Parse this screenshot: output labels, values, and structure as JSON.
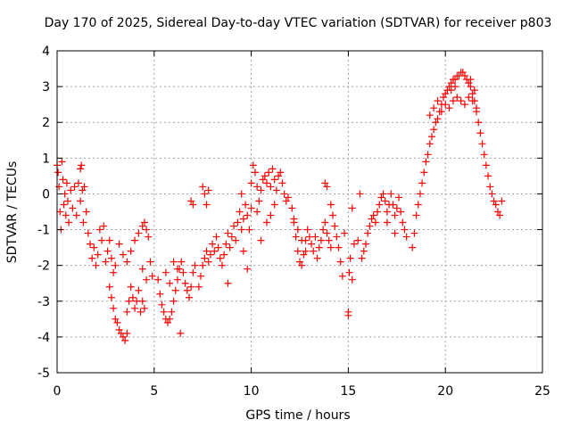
{
  "chart_data": {
    "type": "scatter",
    "title": "Day 170 of 2025, Sidereal Day-to-day VTEC variation (SDTVAR) for receiver p803",
    "xlabel": "GPS time / hours",
    "ylabel": "SDTVAR / TECUs",
    "xlim": [
      0,
      25
    ],
    "ylim": [
      -5,
      4
    ],
    "xticks": [
      0,
      5,
      10,
      15,
      20,
      25
    ],
    "xtick_labels": [
      "0",
      "5",
      "10",
      "15",
      "20",
      "25"
    ],
    "yticks": [
      -5,
      -4,
      -3,
      -2,
      -1,
      0,
      1,
      2,
      3,
      4
    ],
    "ytick_labels": [
      "-5",
      "-4",
      "-3",
      "-2",
      "-1",
      "0",
      "1",
      "2",
      "3",
      "4"
    ],
    "grid": true,
    "marker": "+",
    "color": "#ff0000",
    "series": [
      {
        "name": "SDTVAR",
        "points": [
          [
            0.0,
            0.8
          ],
          [
            0.05,
            0.6
          ],
          [
            0.1,
            0.2
          ],
          [
            0.15,
            -0.5
          ],
          [
            0.2,
            -1.0
          ],
          [
            0.25,
            0.9
          ],
          [
            0.3,
            0.4
          ],
          [
            0.35,
            -0.3
          ],
          [
            0.4,
            0.0
          ],
          [
            0.45,
            -0.6
          ],
          [
            0.5,
            0.3
          ],
          [
            0.55,
            -0.2
          ],
          [
            0.6,
            -0.8
          ],
          [
            0.7,
            0.1
          ],
          [
            0.8,
            -0.4
          ],
          [
            0.9,
            0.2
          ],
          [
            1.0,
            -0.6
          ],
          [
            1.1,
            0.3
          ],
          [
            1.2,
            -0.2
          ],
          [
            1.3,
            0.1
          ],
          [
            1.35,
            -0.8
          ],
          [
            1.4,
            0.2
          ],
          [
            1.5,
            -0.5
          ],
          [
            1.6,
            -1.1
          ],
          [
            1.7,
            -1.4
          ],
          [
            1.8,
            -1.8
          ],
          [
            1.9,
            -1.5
          ],
          [
            2.0,
            -2.0
          ],
          [
            2.1,
            -1.7
          ],
          [
            2.2,
            -1.0
          ],
          [
            2.3,
            -1.3
          ],
          [
            2.4,
            -0.9
          ],
          [
            2.5,
            -1.9
          ],
          [
            2.6,
            -1.6
          ],
          [
            2.7,
            -1.3
          ],
          [
            2.8,
            -1.8
          ],
          [
            2.9,
            -2.2
          ],
          [
            3.0,
            -2.0
          ],
          [
            1.2,
            0.7
          ],
          [
            1.25,
            0.8
          ],
          [
            2.7,
            -2.6
          ],
          [
            2.8,
            -2.9
          ],
          [
            2.9,
            -3.2
          ],
          [
            3.0,
            -3.5
          ],
          [
            3.1,
            -3.6
          ],
          [
            3.2,
            -3.8
          ],
          [
            3.3,
            -3.9
          ],
          [
            3.4,
            -4.0
          ],
          [
            3.5,
            -4.1
          ],
          [
            3.6,
            -3.9
          ],
          [
            3.6,
            -3.3
          ],
          [
            3.7,
            -3.0
          ],
          [
            3.8,
            -2.6
          ],
          [
            3.9,
            -2.9
          ],
          [
            4.0,
            -3.2
          ],
          [
            4.1,
            -3.0
          ],
          [
            4.2,
            -2.7
          ],
          [
            4.3,
            -3.3
          ],
          [
            4.4,
            -3.0
          ],
          [
            4.5,
            -3.2
          ],
          [
            3.2,
            -1.4
          ],
          [
            3.4,
            -1.7
          ],
          [
            3.6,
            -1.9
          ],
          [
            3.8,
            -1.6
          ],
          [
            4.0,
            -1.3
          ],
          [
            4.2,
            -1.1
          ],
          [
            4.4,
            -0.9
          ],
          [
            4.5,
            -0.8
          ],
          [
            4.6,
            -1.0
          ],
          [
            4.7,
            -1.2
          ],
          [
            4.4,
            -2.1
          ],
          [
            4.6,
            -2.4
          ],
          [
            4.8,
            -1.9
          ],
          [
            4.9,
            -2.3
          ],
          [
            5.2,
            -2.4
          ],
          [
            5.3,
            -2.8
          ],
          [
            5.4,
            -3.1
          ],
          [
            5.5,
            -3.3
          ],
          [
            5.6,
            -3.5
          ],
          [
            5.7,
            -3.6
          ],
          [
            5.8,
            -3.5
          ],
          [
            5.9,
            -3.3
          ],
          [
            6.0,
            -3.0
          ],
          [
            6.1,
            -2.7
          ],
          [
            6.2,
            -2.4
          ],
          [
            6.3,
            -2.1
          ],
          [
            6.4,
            -1.9
          ],
          [
            6.5,
            -2.2
          ],
          [
            6.6,
            -2.5
          ],
          [
            6.7,
            -2.7
          ],
          [
            6.8,
            -2.9
          ],
          [
            6.9,
            -2.6
          ],
          [
            7.0,
            -2.2
          ],
          [
            7.1,
            -2.0
          ],
          [
            6.0,
            -1.9
          ],
          [
            6.2,
            -2.1
          ],
          [
            5.6,
            -2.2
          ],
          [
            5.8,
            -2.5
          ],
          [
            6.35,
            -3.9
          ],
          [
            6.9,
            -0.2
          ],
          [
            7.0,
            -0.3
          ],
          [
            7.5,
            0.2
          ],
          [
            7.6,
            0.0
          ],
          [
            7.7,
            -0.3
          ],
          [
            7.8,
            0.1
          ],
          [
            7.3,
            -2.6
          ],
          [
            7.4,
            -2.3
          ],
          [
            7.5,
            -2.0
          ],
          [
            7.6,
            -1.8
          ],
          [
            7.7,
            -1.6
          ],
          [
            7.8,
            -1.9
          ],
          [
            7.9,
            -1.7
          ],
          [
            8.0,
            -1.4
          ],
          [
            8.1,
            -1.6
          ],
          [
            8.2,
            -1.2
          ],
          [
            8.3,
            -1.5
          ],
          [
            8.4,
            -1.8
          ],
          [
            8.5,
            -2.0
          ],
          [
            8.6,
            -1.7
          ],
          [
            8.7,
            -1.4
          ],
          [
            8.8,
            -1.1
          ],
          [
            8.9,
            -1.5
          ],
          [
            9.0,
            -1.2
          ],
          [
            9.1,
            -0.9
          ],
          [
            8.8,
            -2.5
          ],
          [
            9.2,
            -1.3
          ],
          [
            9.3,
            -0.8
          ],
          [
            9.4,
            -0.5
          ],
          [
            9.5,
            -1.0
          ],
          [
            9.6,
            -0.7
          ],
          [
            9.7,
            -0.3
          ],
          [
            9.8,
            -0.6
          ],
          [
            9.9,
            -1.0
          ],
          [
            10.0,
            -0.4
          ],
          [
            9.5,
            0.0
          ],
          [
            9.6,
            -1.6
          ],
          [
            9.8,
            -2.1
          ],
          [
            10.0,
            0.3
          ],
          [
            10.1,
            0.8
          ],
          [
            10.2,
            0.6
          ],
          [
            10.3,
            0.2
          ],
          [
            10.4,
            -0.2
          ],
          [
            10.5,
            0.1
          ],
          [
            10.6,
            0.4
          ],
          [
            10.7,
            0.5
          ],
          [
            10.8,
            0.3
          ],
          [
            10.9,
            0.6
          ],
          [
            11.0,
            0.2
          ],
          [
            11.1,
            0.7
          ],
          [
            11.2,
            0.4
          ],
          [
            11.3,
            0.1
          ],
          [
            11.4,
            0.5
          ],
          [
            11.5,
            0.6
          ],
          [
            11.6,
            0.3
          ],
          [
            11.7,
            0.0
          ],
          [
            11.8,
            -0.2
          ],
          [
            11.9,
            -0.1
          ],
          [
            10.3,
            -0.5
          ],
          [
            10.5,
            -1.3
          ],
          [
            10.8,
            -0.8
          ],
          [
            11.0,
            -0.6
          ],
          [
            11.2,
            -0.3
          ],
          [
            12.1,
            -0.4
          ],
          [
            12.2,
            -0.8
          ],
          [
            12.3,
            -1.2
          ],
          [
            12.4,
            -1.6
          ],
          [
            12.5,
            -1.9
          ],
          [
            12.6,
            -2.0
          ],
          [
            12.7,
            -1.7
          ],
          [
            12.8,
            -1.3
          ],
          [
            12.9,
            -1.0
          ],
          [
            13.0,
            -1.2
          ],
          [
            12.2,
            -0.7
          ],
          [
            12.4,
            -1.0
          ],
          [
            12.6,
            -1.3
          ],
          [
            12.8,
            -1.6
          ],
          [
            13.1,
            -1.4
          ],
          [
            13.2,
            -1.6
          ],
          [
            13.3,
            -1.2
          ],
          [
            13.4,
            -1.8
          ],
          [
            13.5,
            -1.5
          ],
          [
            13.6,
            -1.3
          ],
          [
            13.7,
            -1.0
          ],
          [
            13.8,
            -0.8
          ],
          [
            13.9,
            -1.1
          ],
          [
            14.0,
            -1.3
          ],
          [
            14.1,
            -1.5
          ],
          [
            13.8,
            0.3
          ],
          [
            13.9,
            0.2
          ],
          [
            14.1,
            -0.3
          ],
          [
            14.2,
            -0.6
          ],
          [
            14.3,
            -0.9
          ],
          [
            14.4,
            -1.2
          ],
          [
            14.5,
            -1.5
          ],
          [
            14.6,
            -1.9
          ],
          [
            14.7,
            -2.3
          ],
          [
            14.8,
            -1.1
          ],
          [
            15.0,
            -3.4
          ],
          [
            15.0,
            -3.3
          ],
          [
            15.05,
            -2.2
          ],
          [
            15.1,
            -1.8
          ],
          [
            15.2,
            -2.4
          ],
          [
            15.2,
            -0.4
          ],
          [
            15.3,
            -1.4
          ],
          [
            15.5,
            -1.3
          ],
          [
            15.6,
            0.0
          ],
          [
            15.7,
            -1.8
          ],
          [
            15.8,
            -1.6
          ],
          [
            15.9,
            -1.4
          ],
          [
            16.0,
            -1.1
          ],
          [
            16.1,
            -0.9
          ],
          [
            16.2,
            -0.7
          ],
          [
            16.3,
            -0.6
          ],
          [
            16.4,
            -0.8
          ],
          [
            16.5,
            -0.5
          ],
          [
            16.6,
            -0.3
          ],
          [
            16.7,
            -0.1
          ],
          [
            16.8,
            0.0
          ],
          [
            16.9,
            -0.2
          ],
          [
            17.0,
            -0.5
          ],
          [
            17.1,
            -0.3
          ],
          [
            17.2,
            0.0
          ],
          [
            17.3,
            -0.3
          ],
          [
            17.4,
            -0.6
          ],
          [
            17.5,
            -0.4
          ],
          [
            17.6,
            -0.1
          ],
          [
            17.7,
            -0.5
          ],
          [
            17.8,
            -0.8
          ],
          [
            17.9,
            -1.0
          ],
          [
            18.0,
            -1.2
          ],
          [
            17.0,
            -0.8
          ],
          [
            17.4,
            -1.1
          ],
          [
            18.3,
            -1.5
          ],
          [
            18.4,
            -1.1
          ],
          [
            18.5,
            -0.6
          ],
          [
            18.6,
            -0.3
          ],
          [
            18.7,
            0.0
          ],
          [
            18.8,
            0.3
          ],
          [
            18.9,
            0.6
          ],
          [
            19.0,
            0.9
          ],
          [
            19.1,
            1.1
          ],
          [
            19.2,
            1.4
          ],
          [
            19.3,
            1.6
          ],
          [
            19.4,
            1.8
          ],
          [
            19.5,
            2.0
          ],
          [
            19.6,
            2.1
          ],
          [
            19.7,
            2.3
          ],
          [
            19.8,
            2.5
          ],
          [
            19.9,
            2.7
          ],
          [
            20.0,
            2.8
          ],
          [
            20.1,
            2.9
          ],
          [
            20.2,
            3.0
          ],
          [
            20.3,
            3.1
          ],
          [
            20.4,
            3.2
          ],
          [
            20.5,
            3.2
          ],
          [
            20.6,
            3.3
          ],
          [
            20.7,
            3.3
          ],
          [
            20.8,
            3.4
          ],
          [
            20.9,
            3.4
          ],
          [
            21.0,
            3.3
          ],
          [
            21.1,
            3.2
          ],
          [
            21.2,
            3.1
          ],
          [
            21.3,
            3.0
          ],
          [
            21.4,
            2.8
          ],
          [
            21.5,
            2.6
          ],
          [
            21.6,
            2.3
          ],
          [
            21.7,
            2.0
          ],
          [
            21.8,
            1.7
          ],
          [
            21.9,
            1.4
          ],
          [
            22.0,
            1.1
          ],
          [
            22.1,
            0.8
          ],
          [
            22.2,
            0.5
          ],
          [
            22.3,
            0.2
          ],
          [
            22.4,
            0.0
          ],
          [
            22.5,
            -0.2
          ],
          [
            22.6,
            -0.3
          ],
          [
            22.7,
            -0.5
          ],
          [
            22.8,
            -0.6
          ],
          [
            22.9,
            -0.2
          ],
          [
            19.2,
            2.2
          ],
          [
            19.4,
            2.4
          ],
          [
            19.6,
            2.6
          ],
          [
            19.8,
            2.3
          ],
          [
            20.0,
            2.5
          ],
          [
            20.2,
            2.4
          ],
          [
            20.4,
            2.6
          ],
          [
            20.6,
            2.7
          ],
          [
            20.8,
            2.6
          ],
          [
            21.0,
            2.5
          ],
          [
            21.2,
            2.7
          ],
          [
            21.4,
            2.6
          ],
          [
            21.6,
            2.4
          ],
          [
            20.3,
            2.9
          ],
          [
            20.5,
            3.0
          ],
          [
            21.3,
            3.2
          ],
          [
            21.5,
            2.9
          ]
        ]
      }
    ]
  }
}
